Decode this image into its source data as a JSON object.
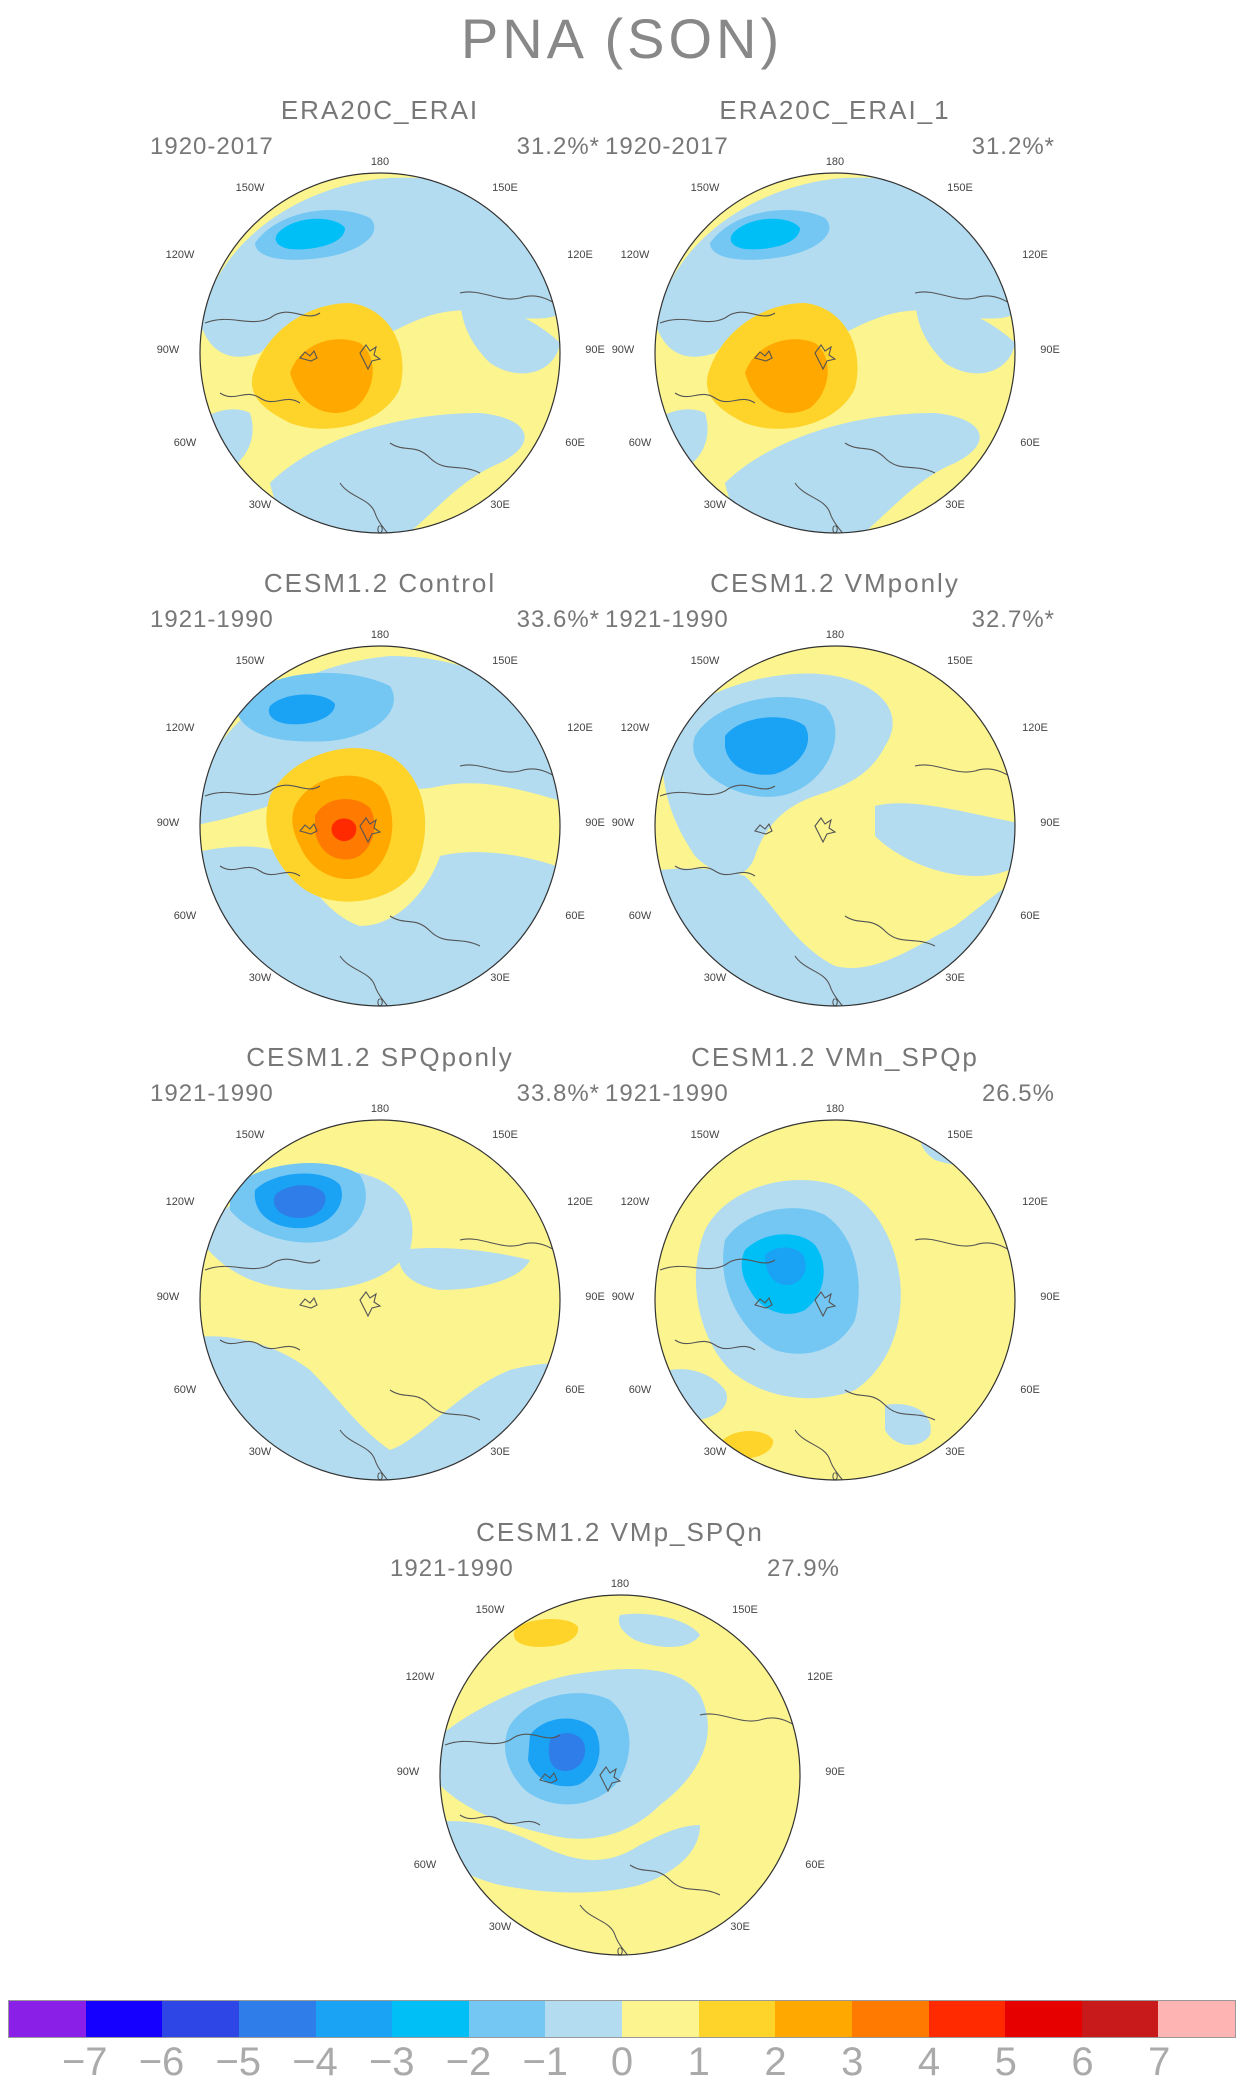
{
  "title": "PNA (SON)",
  "colors": {
    "yellow": "#fbf48f",
    "lightblue": "#b3dcf1",
    "blue2": "#74c7f3",
    "blue3": "#00bff6",
    "blue4": "#1aa2f4",
    "blue5": "#2f7de8",
    "orange2": "#ffd42a",
    "orange3": "#ffa800",
    "orange4": "#ff7a00",
    "red5": "#ff2a00"
  },
  "lon_labels": [
    "180",
    "150E",
    "120E",
    "90E",
    "60E",
    "30E",
    "0",
    "30W",
    "60W",
    "90W",
    "120W",
    "150W"
  ],
  "panels": [
    {
      "title": "ERA20C_ERAI",
      "years": "1920-2017",
      "pct": "31.2%*",
      "pattern": "era"
    },
    {
      "title": "ERA20C_ERAI_1",
      "years": "1920-2017",
      "pct": "31.2%*",
      "pattern": "era"
    },
    {
      "title": "CESM1.2 Control",
      "years": "1921-1990",
      "pct": "33.6%*",
      "pattern": "control"
    },
    {
      "title": "CESM1.2 VMponly",
      "years": "1921-1990",
      "pct": "32.7%*",
      "pattern": "vmp"
    },
    {
      "title": "CESM1.2 SPQponly",
      "years": "1921-1990",
      "pct": "33.8%*",
      "pattern": "spq"
    },
    {
      "title": "CESM1.2 VMn_SPQp",
      "years": "1921-1990",
      "pct": "26.5%",
      "pattern": "vmn"
    },
    {
      "title": "CESM1.2 VMp_SPQn",
      "years": "1921-1990",
      "pct": "27.9%",
      "pattern": "vmpspqn"
    }
  ],
  "colorbar": {
    "colors": [
      "#8a1fe8",
      "#1500ff",
      "#2e46e6",
      "#2f7de8",
      "#1aa2f4",
      "#00bff6",
      "#74c7f3",
      "#b3dcf1",
      "#fbf48f",
      "#ffd42a",
      "#ffa800",
      "#ff7a00",
      "#ff2a00",
      "#e60000",
      "#c81a1a",
      "#ffb4b4"
    ],
    "labels": [
      "-7",
      "-6",
      "-5",
      "-4",
      "-3",
      "-2",
      "-1",
      "0",
      "1",
      "2",
      "3",
      "4",
      "5",
      "6",
      "7"
    ]
  }
}
